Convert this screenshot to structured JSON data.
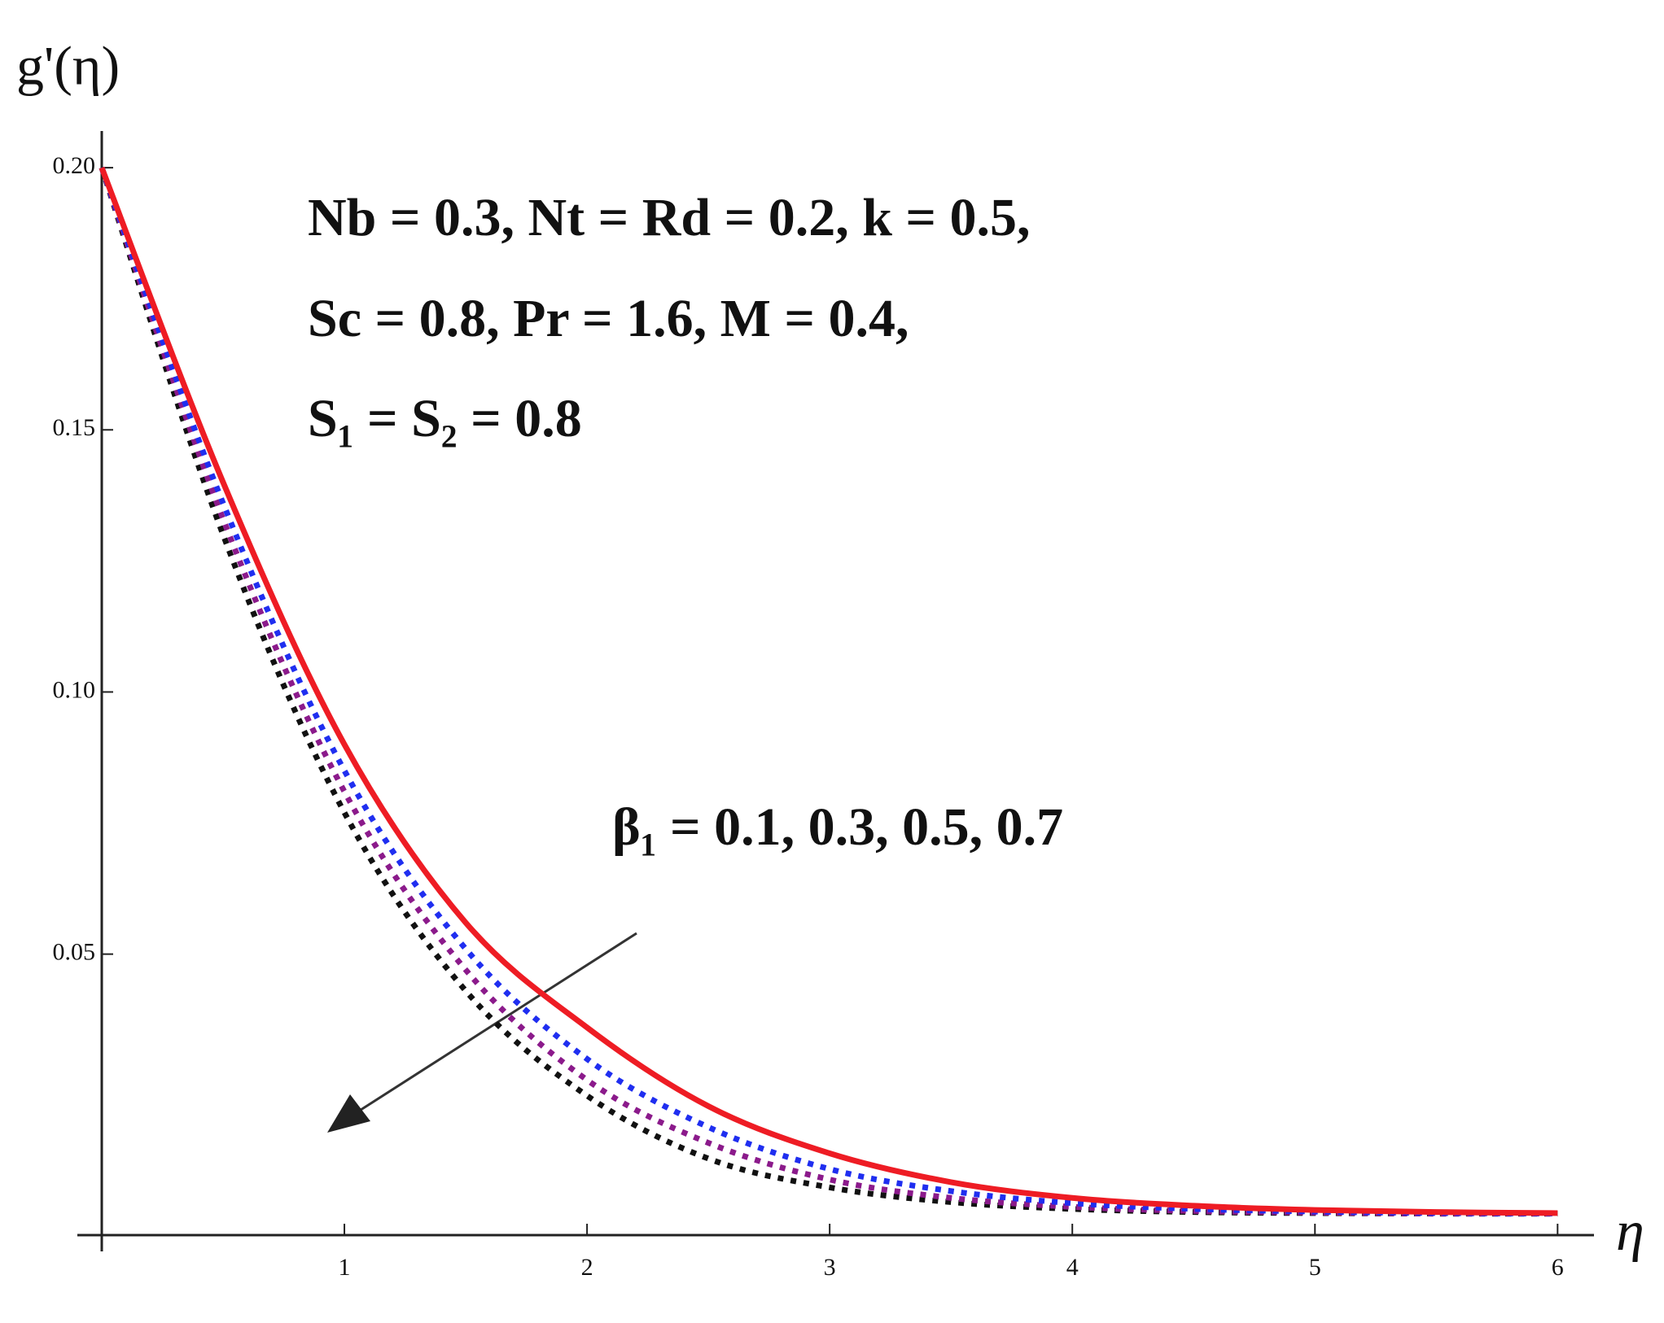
{
  "chart_data": {
    "type": "line",
    "y_label": "g'(η)",
    "x_label": "η",
    "annotations": [
      "Nb = 0.3,  Nt = Rd =  0.2,  k = 0.5,",
      "Sc = 0.8,  Pr = 1.6,  M = 0.4,",
      "S₁ = S₂ =  0.8",
      "β₁ = 0.1, 0.3, 0.5, 0.7"
    ],
    "x": [
      0,
      0.5,
      1,
      1.5,
      2,
      2.5,
      3,
      3.5,
      4,
      4.5,
      5,
      5.5,
      6
    ],
    "series": [
      {
        "color": "#ee1c24",
        "style": "solid",
        "values": [
          0.2,
          0.14,
          0.09,
          0.056,
          0.036,
          0.021,
          0.012,
          0.0065,
          0.0035,
          0.002,
          0.0012,
          0.0008,
          0.0006
        ]
      },
      {
        "color": "#1f2ef0",
        "style": "dotted",
        "values": [
          0.2,
          0.136,
          0.085,
          0.051,
          0.03,
          0.017,
          0.009,
          0.0048,
          0.0025,
          0.0014,
          0.0009,
          0.0006,
          0.0005
        ]
      },
      {
        "color": "#8b1a8b",
        "style": "dotted",
        "values": [
          0.2,
          0.133,
          0.081,
          0.047,
          0.026,
          0.014,
          0.007,
          0.0035,
          0.0018,
          0.001,
          0.0007,
          0.0005,
          0.0005
        ]
      },
      {
        "color": "#111111",
        "style": "dotted",
        "values": [
          0.2,
          0.13,
          0.077,
          0.043,
          0.023,
          0.011,
          0.0055,
          0.0027,
          0.0014,
          0.0008,
          0.0006,
          0.0005,
          0.0005
        ]
      }
    ],
    "xlim": [
      0,
      6.15
    ],
    "ylim": [
      -0.0036,
      0.207
    ],
    "xticks": [
      1,
      2,
      3,
      4,
      5,
      6
    ],
    "yticks": [
      0.05,
      {
        "value": 0.1,
        "label": "0.10"
      },
      0.15,
      {
        "value": 0.2,
        "label": "0.20"
      }
    ],
    "grid": false
  }
}
